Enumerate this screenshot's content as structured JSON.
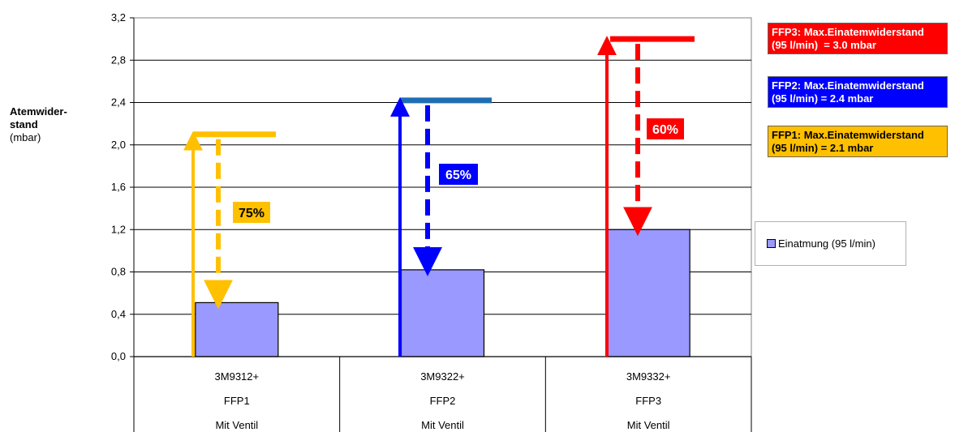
{
  "chart_data": {
    "type": "bar",
    "title": "",
    "ylabel_bold": "Atemwider-stand",
    "ylabel_unit": "(mbar)",
    "xlabel": "",
    "ylim": [
      0,
      3.2
    ],
    "yticks": [
      "0,0",
      "0,4",
      "0,8",
      "1,2",
      "1,6",
      "2,0",
      "2,4",
      "2,8",
      "3,2"
    ],
    "grid": true,
    "legend_position": "right",
    "categories": [
      {
        "line1": "3M9312+",
        "line2": "FFP1",
        "line3": "Mit Ventil"
      },
      {
        "line1": "3M9322+",
        "line2": "FFP2",
        "line3": "Mit Ventil"
      },
      {
        "line1": "3M9332+",
        "line2": "FFP3",
        "line3": "Mit Ventil"
      }
    ],
    "series": [
      {
        "name": "Einatmung (95 l/min)",
        "values": [
          0.51,
          0.82,
          1.2
        ],
        "color": "#9999ff"
      }
    ],
    "limits": [
      {
        "class": "FFP1",
        "max": 2.1,
        "color": "#ffc000",
        "percent_label": "75%",
        "label_color": "#ffc000",
        "label_text_color": "#000000"
      },
      {
        "class": "FFP2",
        "max": 2.42,
        "color": "#0000ff",
        "line_color": "#1f6eb4",
        "percent_label": "65%",
        "label_color": "#0000ff",
        "label_text_color": "#ffffff"
      },
      {
        "class": "FFP3",
        "max": 3.0,
        "color": "#ff0000",
        "percent_label": "60%",
        "label_color": "#ff0000",
        "label_text_color": "#ffffff"
      }
    ]
  },
  "limit_boxes": {
    "ffp3": {
      "line1": "FFP3: Max.Einatemwiderstand",
      "line2": "(95 l/min)  = 3.0 mbar"
    },
    "ffp2": {
      "line1": "FFP2: Max.Einatemwiderstand",
      "line2": "(95 l/min) = 2.4 mbar"
    },
    "ffp1": {
      "line1": "FFP1: Max.Einatemwiderstand",
      "line2": "(95 l/min) = 2.1 mbar"
    }
  },
  "legend": {
    "label": "Einatmung (95 l/min)",
    "color": "#9999ff"
  }
}
